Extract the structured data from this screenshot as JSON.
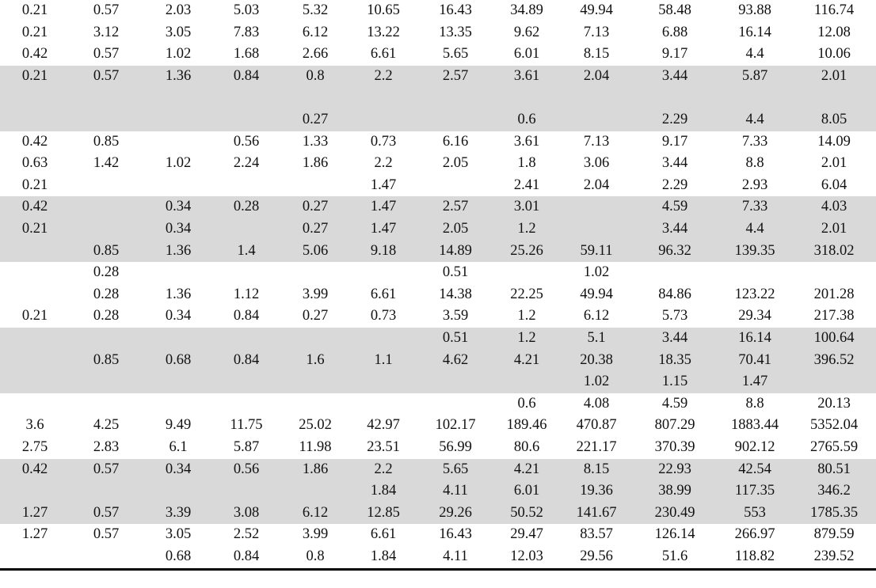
{
  "table": {
    "rows": [
      [
        0.21,
        0.57,
        2.03,
        5.03,
        5.32,
        10.65,
        16.43,
        34.89,
        49.94,
        58.48,
        93.88,
        116.74
      ],
      [
        0.21,
        3.12,
        3.05,
        7.83,
        6.12,
        13.22,
        13.35,
        9.62,
        7.13,
        6.88,
        16.14,
        12.08
      ],
      [
        0.42,
        0.57,
        1.02,
        1.68,
        2.66,
        6.61,
        5.65,
        6.01,
        8.15,
        9.17,
        4.4,
        10.06
      ],
      [
        0.21,
        0.57,
        1.36,
        0.84,
        0.8,
        2.2,
        2.57,
        3.61,
        2.04,
        3.44,
        5.87,
        2.01
      ],
      [
        null,
        null,
        null,
        null,
        null,
        null,
        null,
        null,
        null,
        null,
        null,
        null
      ],
      [
        null,
        null,
        null,
        null,
        0.27,
        null,
        null,
        0.6,
        null,
        2.29,
        4.4,
        8.05
      ],
      [
        0.42,
        0.85,
        null,
        0.56,
        1.33,
        0.73,
        6.16,
        3.61,
        7.13,
        9.17,
        7.33,
        14.09
      ],
      [
        0.63,
        1.42,
        1.02,
        2.24,
        1.86,
        2.2,
        2.05,
        1.8,
        3.06,
        3.44,
        8.8,
        2.01
      ],
      [
        0.21,
        null,
        null,
        null,
        null,
        1.47,
        null,
        2.41,
        2.04,
        2.29,
        2.93,
        6.04
      ],
      [
        0.42,
        null,
        0.34,
        0.28,
        0.27,
        1.47,
        2.57,
        3.01,
        null,
        4.59,
        7.33,
        4.03
      ],
      [
        0.21,
        null,
        0.34,
        null,
        0.27,
        1.47,
        2.05,
        1.2,
        null,
        3.44,
        4.4,
        2.01
      ],
      [
        null,
        0.85,
        1.36,
        1.4,
        5.06,
        9.18,
        14.89,
        25.26,
        59.11,
        96.32,
        139.35,
        318.02
      ],
      [
        null,
        0.28,
        null,
        null,
        null,
        null,
        0.51,
        null,
        1.02,
        null,
        null,
        null
      ],
      [
        null,
        0.28,
        1.36,
        1.12,
        3.99,
        6.61,
        14.38,
        22.25,
        49.94,
        84.86,
        123.22,
        201.28
      ],
      [
        0.21,
        0.28,
        0.34,
        0.84,
        0.27,
        0.73,
        3.59,
        1.2,
        6.12,
        5.73,
        29.34,
        217.38
      ],
      [
        null,
        null,
        null,
        null,
        null,
        null,
        0.51,
        1.2,
        5.1,
        3.44,
        16.14,
        100.64
      ],
      [
        null,
        0.85,
        0.68,
        0.84,
        1.6,
        1.1,
        4.62,
        4.21,
        20.38,
        18.35,
        70.41,
        396.52
      ],
      [
        null,
        null,
        null,
        null,
        null,
        null,
        null,
        null,
        1.02,
        1.15,
        1.47,
        null
      ],
      [
        null,
        null,
        null,
        null,
        null,
        null,
        null,
        0.6,
        4.08,
        4.59,
        8.8,
        20.13
      ],
      [
        3.6,
        4.25,
        9.49,
        11.75,
        25.02,
        42.97,
        102.17,
        189.46,
        470.87,
        807.29,
        1883.44,
        5352.04
      ],
      [
        2.75,
        2.83,
        6.1,
        5.87,
        11.98,
        23.51,
        56.99,
        80.6,
        221.17,
        370.39,
        902.12,
        2765.59
      ],
      [
        0.42,
        0.57,
        0.34,
        0.56,
        1.86,
        2.2,
        5.65,
        4.21,
        8.15,
        22.93,
        42.54,
        80.51
      ],
      [
        null,
        null,
        null,
        null,
        null,
        1.84,
        4.11,
        6.01,
        19.36,
        38.99,
        117.35,
        346.2
      ],
      [
        1.27,
        0.57,
        3.39,
        3.08,
        6.12,
        12.85,
        29.26,
        50.52,
        141.67,
        230.49,
        553,
        1785.35
      ],
      [
        1.27,
        0.57,
        3.05,
        2.52,
        3.99,
        6.61,
        16.43,
        29.47,
        83.57,
        126.14,
        266.97,
        879.59
      ],
      [
        null,
        null,
        0.68,
        0.84,
        0.8,
        1.84,
        4.11,
        12.03,
        29.56,
        51.6,
        118.82,
        239.52
      ]
    ]
  }
}
